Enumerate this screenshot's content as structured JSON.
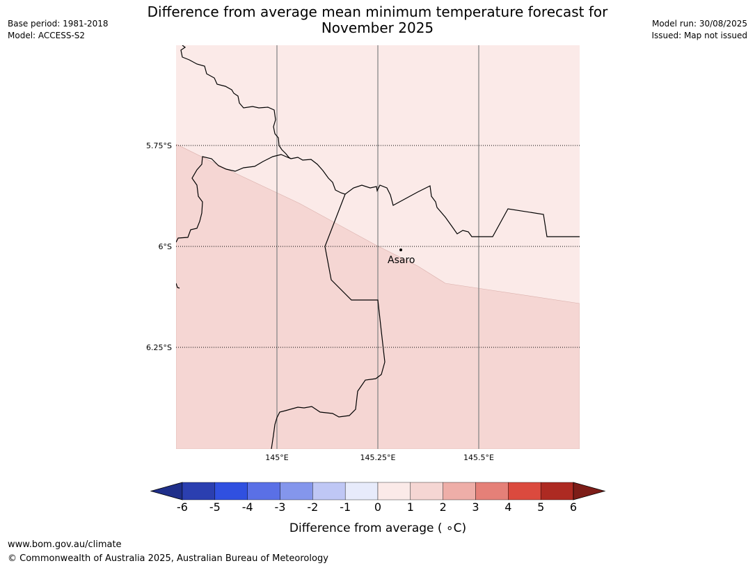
{
  "header": {
    "title_line1": "Difference from average mean minimum temperature forecast for",
    "title_line2": "November 2025",
    "base_period": "Base period: 1981-2018",
    "model": "Model: ACCESS-S2",
    "model_run": "Model run: 30/08/2025",
    "issued": "Issued: Map not issued"
  },
  "map": {
    "lat_labels": [
      "5.75°S",
      "6°S",
      "6.25°S"
    ],
    "lon_labels": [
      "145°E",
      "145.25°E",
      "145.5°E"
    ],
    "town": {
      "name": "Asaro"
    },
    "fill_colors": {
      "band_0_1": "#fbeae8",
      "band_1_2": "#f5d6d3"
    }
  },
  "colorbar": {
    "label": "Difference from average ( ∘C)",
    "ticks": [
      "-6",
      "-5",
      "-4",
      "-3",
      "-2",
      "-1",
      "0",
      "1",
      "2",
      "3",
      "4",
      "5",
      "6"
    ],
    "colors": [
      "#2b3fb0",
      "#3050e0",
      "#5a70e6",
      "#8496ec",
      "#bfc7f5",
      "#e7ebfb",
      "#fbeae8",
      "#f5d6d3",
      "#eeaea8",
      "#e58078",
      "#db4a3e",
      "#ad2a22"
    ],
    "under_color": "#1f2f8a",
    "over_color": "#7d1d18"
  },
  "footer": {
    "url": "www.bom.gov.au/climate",
    "copyright": "© Commonwealth of Australia 2025, Australian Bureau of Meteorology"
  }
}
